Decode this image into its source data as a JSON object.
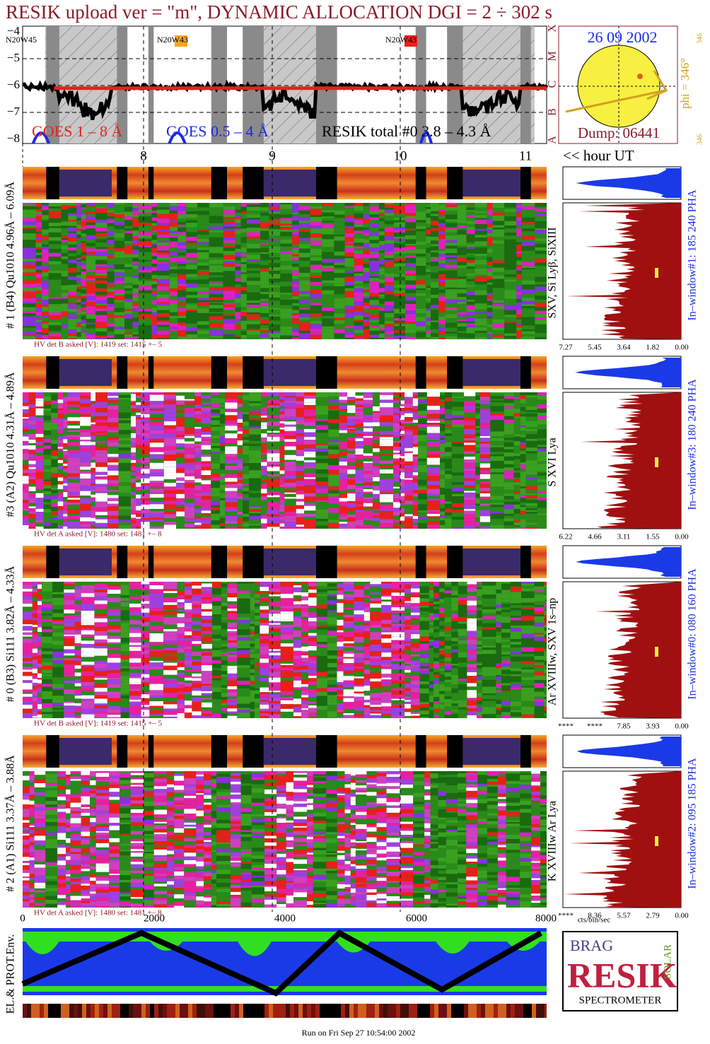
{
  "header": {
    "title": "RESIK upload ver = \"m\", DYNAMIC ALLOCATION  DGI =   2 ÷ 302 s"
  },
  "goes_panel": {
    "yticks": [
      "−4",
      "−5",
      "−6",
      "−7",
      "−8"
    ],
    "regions": [
      "N20W45",
      "N20W43",
      "N20W43"
    ],
    "legend": [
      "GOES 1 – 8 Å",
      "GOES 0.5 – 4 Å",
      "RESIK total #0   3.8 – 4.3 Å"
    ],
    "classes": [
      "X",
      "M",
      "C",
      "B",
      "A"
    ],
    "hour_ticks": [
      "8",
      "9",
      "10",
      "11"
    ],
    "hour_label": "<< hour UT"
  },
  "sun": {
    "date": "26 09 2002",
    "phi": "phi = 346°",
    "phi_small": [
      "346",
      "346"
    ],
    "dump": "Dump: 06441"
  },
  "detectors": [
    {
      "label": "# 1 (B4) Qu1010 4.96Å – 6.09Å",
      "lines": "SXV, Si Lyβ, SiXIII",
      "hv": "HV det B asked [V]:  1419 set:  1415  +–    5",
      "window": "In–window#1:  185 240 PHA",
      "xticks": [
        "7.27",
        "5.45",
        "3.64",
        "1.82",
        "0.00"
      ]
    },
    {
      "label": "#3 (A2) Qu1010  4.31Å – 4.89Å",
      "lines": "S XVI Lya",
      "hv": "HV det A asked [V]:  1480 set:  1481  +–    8",
      "window": "In–window#3:  180 240 PHA",
      "xticks": [
        "6.22",
        "4.66",
        "3.11",
        "1.55",
        "0.00"
      ]
    },
    {
      "label": "# 0 (B3) Si111  3.82Å – 4.33Å",
      "lines": "Ar XVIIIw,  SXV 1s–np",
      "hv": "HV det B asked [V]:  1419 set:  1415  +–    5",
      "window": "In–window#0:  080 160 PHA",
      "xticks": [
        "****",
        "****",
        "7.85",
        "3.93",
        "0.00"
      ]
    },
    {
      "label": "# 2 (A1) Si111  3.37Å – 3.88Å",
      "lines": "K XVIIIw  Ar Lya",
      "hv": "HV det A asked [V]:  1480 set:  1481  +–    8",
      "window": "In–window#2:  095 185 PHA",
      "xticks": [
        "****",
        "8.36",
        "5.57",
        "2.79",
        "0.00"
      ]
    }
  ],
  "bottom": {
    "xticks": [
      "0",
      "2000",
      "4000",
      "6000",
      "8000"
    ],
    "unit": "cts/bin/sec",
    "env_label": "EL.& PROT.Env.",
    "logo": {
      "top": "BRAG",
      "main": "RESIK",
      "side": "SOLAR",
      "bottom": "SPECTROMETER"
    },
    "footer": "Run on Fri Sep 27 10:54:00 2002"
  }
}
